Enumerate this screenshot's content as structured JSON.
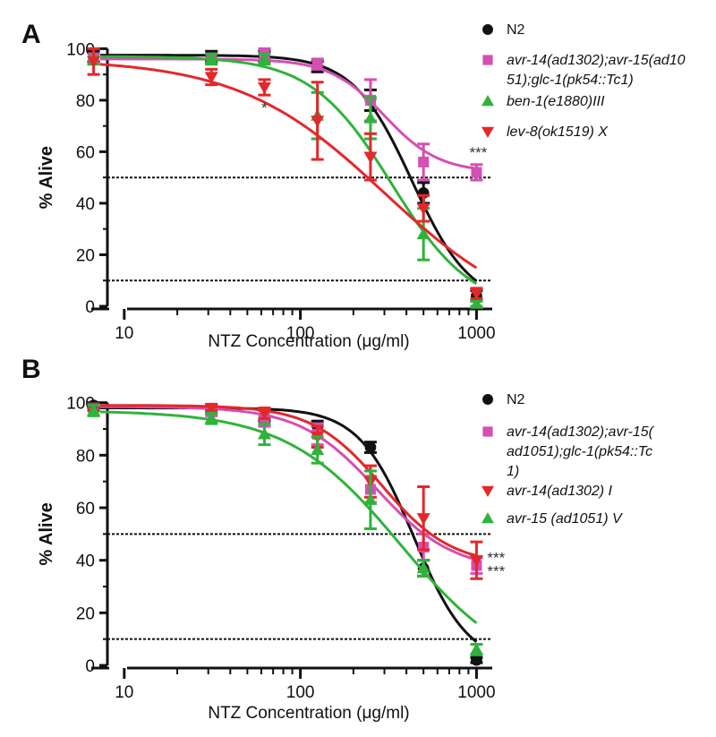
{
  "chart_data": [
    {
      "panel": "A",
      "type": "line",
      "xscale": "log",
      "xlim": [
        6.5,
        1200
      ],
      "ylim": [
        0,
        105
      ],
      "xticks": [
        10,
        100,
        1000
      ],
      "xtick_labels": [
        "10",
        "100",
        "1000"
      ],
      "yticks": [
        0,
        20,
        40,
        60,
        80,
        100
      ],
      "ytick_labels": [
        "0",
        "20",
        "40",
        "60",
        "80",
        "100"
      ],
      "xlabel": "NTZ Concentration (μg/ml)",
      "ylabel": "% Alive",
      "reference_lines": [
        50,
        10
      ],
      "series": [
        {
          "name": "N2",
          "legend": [
            "N2"
          ],
          "italic": false,
          "color": "#111111",
          "marker": "circle",
          "x": [
            6.7,
            31.25,
            62.5,
            125,
            250,
            500,
            1000
          ],
          "y": [
            97,
            97,
            97,
            93,
            80,
            44,
            4
          ],
          "err": [
            2,
            2,
            2,
            2,
            4,
            4,
            2
          ],
          "fit": {
            "top": 97.5,
            "bottom": 0,
            "ec50": 430,
            "hill": 2.6
          }
        },
        {
          "name": "avr-14(ad1302);avr-15(ad1051);glc-1(pk54::Tc1)",
          "legend": [
            "avr-14(ad1302);avr-15(ad10",
            "51);glc-1(pk54::Tc1)"
          ],
          "italic": true,
          "color": "#d54fb4",
          "marker": "square",
          "x": [
            6.7,
            31.25,
            62.5,
            125,
            250,
            500,
            1000
          ],
          "y": [
            96,
            96,
            98,
            94,
            80,
            56,
            52
          ],
          "err": [
            2,
            2,
            2,
            2,
            8,
            7,
            3
          ],
          "fit": {
            "top": 96,
            "bottom": 52,
            "ec50": 300,
            "hill": 2.8
          }
        },
        {
          "name": "ben-1(e1880)III",
          "legend": [
            "ben-1(e1880)III"
          ],
          "italic": true,
          "color": "#2fb33b",
          "marker": "triangle-up",
          "x": [
            6.7,
            31.25,
            62.5,
            125,
            250,
            500,
            1000
          ],
          "y": [
            97,
            96,
            96,
            74,
            73,
            28,
            1
          ],
          "err": [
            3,
            2,
            2,
            9,
            8,
            10,
            1
          ],
          "fit": {
            "top": 97,
            "bottom": -2,
            "ec50": 330,
            "hill": 1.9
          }
        },
        {
          "name": "lev-8(ok1519) X",
          "legend": [
            "lev-8(ok1519) X"
          ],
          "italic": true,
          "color": "#e3282b",
          "marker": "triangle-down",
          "x": [
            6.7,
            31.25,
            62.5,
            125,
            250,
            500,
            1000
          ],
          "y": [
            95,
            89,
            85,
            72,
            58,
            38,
            5
          ],
          "err": [
            5,
            3,
            3,
            15,
            9,
            5,
            2
          ],
          "fit": {
            "top": 96,
            "bottom": -8,
            "ec50": 300,
            "hill": 1.05
          }
        }
      ],
      "annotations": [
        {
          "text": "*",
          "x": 62.5,
          "y": 80,
          "side": "below"
        },
        {
          "text": "***",
          "x": 1000,
          "y": 57,
          "side": "above"
        }
      ]
    },
    {
      "panel": "B",
      "type": "line",
      "xscale": "log",
      "xlim": [
        6.5,
        1200
      ],
      "ylim": [
        0,
        105
      ],
      "xticks": [
        10,
        100,
        1000
      ],
      "xtick_labels": [
        "10",
        "100",
        "1000"
      ],
      "yticks": [
        0,
        20,
        40,
        60,
        80,
        100
      ],
      "ytick_labels": [
        "0",
        "20",
        "40",
        "60",
        "80",
        "100"
      ],
      "xlabel": "NTZ Concentration (μg/ml)",
      "ylabel": "% Alive",
      "reference_lines": [
        50,
        10
      ],
      "series": [
        {
          "name": "N2",
          "legend": [
            "N2"
          ],
          "italic": false,
          "color": "#111111",
          "marker": "circle",
          "x": [
            6.7,
            31.25,
            62.5,
            125,
            250,
            500,
            1000
          ],
          "y": [
            99,
            97,
            95,
            91,
            83,
            37,
            2
          ],
          "err": [
            1,
            1,
            2,
            2,
            2,
            3,
            1
          ],
          "fit": {
            "top": 98,
            "bottom": 0,
            "ec50": 440,
            "hill": 2.8
          }
        },
        {
          "name": "avr-14(ad1302);avr-15(ad1051);glc-1(pk54::Tc1)",
          "legend": [
            "avr-14(ad1302);avr-15(",
            "ad1051);glc-1(pk54::Tc",
            "1)"
          ],
          "italic": true,
          "color": "#d54fb4",
          "marker": "square",
          "x": [
            6.7,
            31.25,
            62.5,
            125,
            250,
            500,
            1000
          ],
          "y": [
            98,
            97,
            94,
            88,
            67,
            45,
            38
          ],
          "err": [
            1,
            2,
            3,
            4,
            5,
            5,
            3
          ],
          "fit": {
            "top": 98.5,
            "bottom": 36,
            "ec50": 270,
            "hill": 2.0
          }
        },
        {
          "name": "avr-14(ad1302) I",
          "legend": [
            "avr-14(ad1302) I"
          ],
          "italic": true,
          "color": "#e3282b",
          "marker": "triangle-down",
          "x": [
            6.7,
            31.25,
            62.5,
            125,
            250,
            500,
            1000
          ],
          "y": [
            98,
            98,
            96,
            87,
            70,
            56,
            40
          ],
          "err": [
            1,
            1,
            2,
            4,
            6,
            12,
            7
          ],
          "fit": {
            "top": 99,
            "bottom": 38,
            "ec50": 290,
            "hill": 2.2
          }
        },
        {
          "name": "avr-15 (ad1051) V",
          "legend": [
            "avr-15 (ad1051) V"
          ],
          "italic": true,
          "color": "#2fb33b",
          "marker": "triangle-up",
          "x": [
            6.7,
            31.25,
            62.5,
            125,
            250,
            500,
            1000
          ],
          "y": [
            97,
            94,
            88,
            82,
            63,
            37,
            6
          ],
          "err": [
            2,
            2,
            4,
            5,
            11,
            3,
            2
          ],
          "fit": {
            "top": 97,
            "bottom": -5,
            "ec50": 370,
            "hill": 1.35
          }
        }
      ],
      "annotations": [
        {
          "text": "***",
          "x": 1000,
          "y": 41,
          "side": "right"
        },
        {
          "text": "***",
          "x": 1000,
          "y": 36,
          "side": "right"
        }
      ]
    }
  ]
}
